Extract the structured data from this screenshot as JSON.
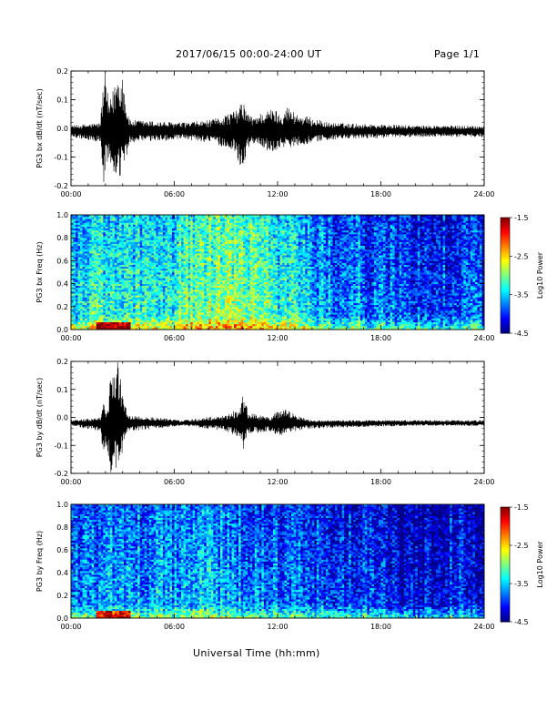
{
  "header": {
    "title": "2017/06/15  00:00-24:00 UT",
    "page": "Page 1/1"
  },
  "footer": {
    "xlabel": "Universal Time (hh:mm)"
  },
  "chart_data": [
    {
      "type": "line",
      "ylabel": "PG3 bx dB/dt (nT/sec)",
      "xlabel": "",
      "x_ticks": [
        "00:00",
        "06:00",
        "12:00",
        "18:00",
        "24:00"
      ],
      "xlim": [
        0,
        24
      ],
      "ylim": [
        -0.2,
        0.2
      ],
      "y_ticks": [
        "-0.2",
        "-0.1",
        "0.0",
        "0.1",
        "0.2"
      ],
      "baseline": -0.01,
      "series": [
        {
          "x": [
            0,
            1.7,
            1.9,
            2.0,
            2.2,
            2.5,
            2.7,
            3.0,
            3.2,
            3.4,
            6.5,
            8.2,
            9.0,
            9.5,
            9.7,
            10.0,
            10.2,
            10.5,
            11.2,
            11.8,
            12.2,
            12.5,
            13.2,
            15.0,
            20.0,
            24.0
          ],
          "upper": [
            0.01,
            0.02,
            0.18,
            0.2,
            0.08,
            0.15,
            0.2,
            0.2,
            0.09,
            0.03,
            0.02,
            0.03,
            0.05,
            0.06,
            0.07,
            0.1,
            0.06,
            0.04,
            0.06,
            0.07,
            0.05,
            0.08,
            0.05,
            0.02,
            0.01,
            0.01
          ],
          "lower": [
            -0.03,
            -0.05,
            -0.2,
            -0.15,
            -0.1,
            -0.2,
            -0.2,
            -0.15,
            -0.12,
            -0.05,
            -0.04,
            -0.05,
            -0.07,
            -0.08,
            -0.11,
            -0.16,
            -0.08,
            -0.05,
            -0.07,
            -0.09,
            -0.06,
            -0.07,
            -0.06,
            -0.04,
            -0.03,
            -0.03
          ]
        }
      ]
    },
    {
      "type": "heatmap",
      "ylabel": "PG3 bx Freq (Hz)",
      "x_ticks": [
        "00:00",
        "06:00",
        "12:00",
        "18:00",
        "24:00"
      ],
      "xlim": [
        0,
        24
      ],
      "ylim": [
        0,
        1.0
      ],
      "y_ticks": [
        "0.0",
        "0.2",
        "0.4",
        "0.6",
        "0.8",
        "1.0"
      ],
      "colorbar": {
        "label": "Log10 Power",
        "ticks": [
          "-1.5",
          "-2.5",
          "-3.5",
          "-4.5"
        ],
        "range": [
          -4.5,
          -1.5
        ]
      },
      "hour_levels": [
        -3.4,
        -3.3,
        -3.2,
        -3.2,
        -3.3,
        -3.3,
        -3.1,
        -3.0,
        -2.9,
        -2.9,
        -3.0,
        -3.0,
        -3.2,
        -3.4,
        -3.6,
        -3.7,
        -3.6,
        -3.8,
        -3.7,
        -3.8,
        -3.9,
        -3.9,
        -3.8,
        -3.9
      ]
    },
    {
      "type": "line",
      "ylabel": "PG3 by dB/dt (nT/sec)",
      "xlabel": "",
      "x_ticks": [
        "00:00",
        "06:00",
        "12:00",
        "18:00",
        "24:00"
      ],
      "xlim": [
        0,
        24
      ],
      "ylim": [
        -0.2,
        0.2
      ],
      "y_ticks": [
        "-0.2",
        "-0.1",
        "0.0",
        "0.1",
        "0.2"
      ],
      "baseline": -0.02,
      "series": [
        {
          "x": [
            0,
            1.7,
            1.9,
            2.1,
            2.3,
            2.6,
            2.8,
            3.0,
            3.3,
            6.5,
            9.0,
            9.7,
            10.0,
            10.3,
            11.5,
            12.0,
            12.5,
            13.0,
            14.0,
            20.0,
            24.0
          ],
          "upper": [
            -0.01,
            0.0,
            0.05,
            0.02,
            0.15,
            0.2,
            0.2,
            0.08,
            0.01,
            -0.01,
            0.01,
            0.03,
            0.08,
            0.02,
            0.0,
            0.02,
            0.03,
            0.01,
            -0.01,
            -0.01,
            -0.01
          ],
          "lower": [
            -0.03,
            -0.05,
            -0.15,
            -0.1,
            -0.2,
            -0.2,
            -0.2,
            -0.12,
            -0.05,
            -0.03,
            -0.05,
            -0.07,
            -0.12,
            -0.06,
            -0.05,
            -0.07,
            -0.06,
            -0.05,
            -0.04,
            -0.03,
            -0.03
          ]
        }
      ]
    },
    {
      "type": "heatmap",
      "ylabel": "PG3 by Freq (Hz)",
      "x_ticks": [
        "00:00",
        "06:00",
        "12:00",
        "18:00",
        "24:00"
      ],
      "xlim": [
        0,
        24
      ],
      "ylim": [
        0,
        1.0
      ],
      "y_ticks": [
        "0.0",
        "0.2",
        "0.4",
        "0.6",
        "0.8",
        "1.0"
      ],
      "colorbar": {
        "label": "Log10 Power",
        "ticks": [
          "-1.5",
          "-2.5",
          "-3.5",
          "-4.5"
        ],
        "range": [
          -4.5,
          -1.5
        ]
      },
      "hour_levels": [
        -3.7,
        -3.7,
        -3.6,
        -3.6,
        -3.7,
        -3.6,
        -3.6,
        -3.5,
        -3.5,
        -3.6,
        -3.7,
        -3.7,
        -3.8,
        -3.8,
        -3.9,
        -3.9,
        -3.9,
        -3.9,
        -4.0,
        -4.2,
        -4.2,
        -4.1,
        -4.0,
        -4.1
      ]
    }
  ]
}
